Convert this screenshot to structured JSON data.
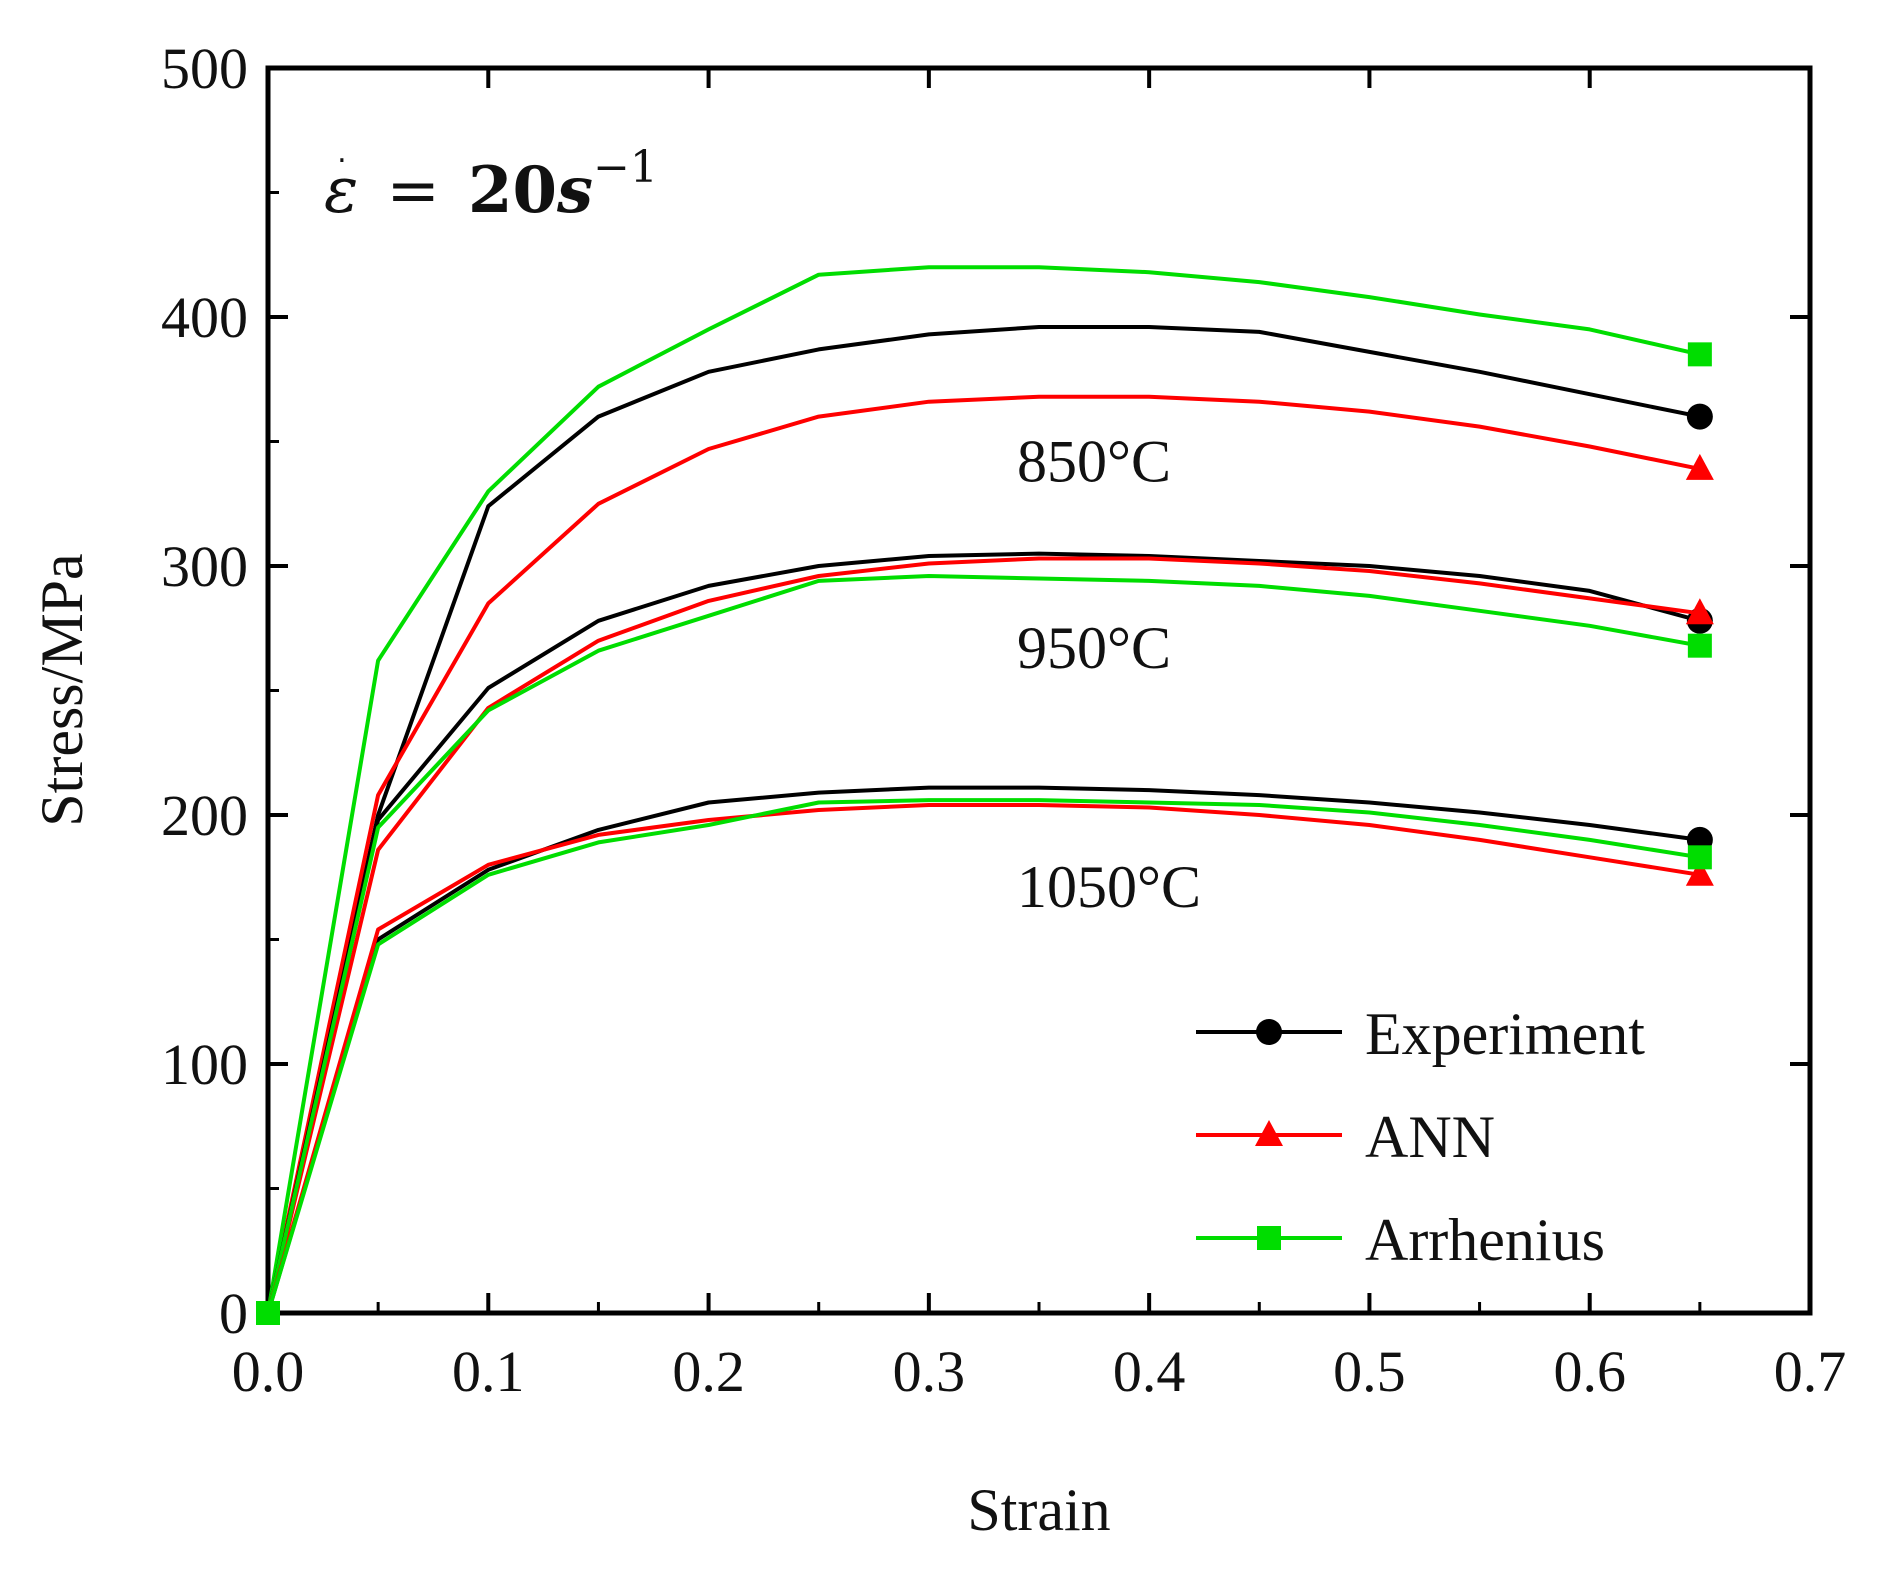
{
  "chart_data": {
    "type": "line",
    "title": "",
    "annotation": {
      "symbol": "ε",
      "equals": "=",
      "value": "20",
      "unit": "s",
      "exponent": "−1"
    },
    "xlabel": "Strain",
    "ylabel": "Stress/MPa",
    "xlim": [
      0.0,
      0.7
    ],
    "ylim": [
      0,
      500
    ],
    "xticks": [
      "0.0",
      "0.1",
      "0.2",
      "0.3",
      "0.4",
      "0.5",
      "0.6",
      "0.7"
    ],
    "yticks": [
      "0",
      "100",
      "200",
      "300",
      "400",
      "500"
    ],
    "grid": false,
    "legend_position": "bottom-right",
    "legend": [
      {
        "name": "Experiment",
        "color": "#000000",
        "marker": "circle"
      },
      {
        "name": "ANN",
        "color": "#ff0000",
        "marker": "triangle"
      },
      {
        "name": "Arrhenius",
        "color": "#00dd00",
        "marker": "square"
      }
    ],
    "curve_labels": [
      {
        "text": "850°C",
        "x": 0.34,
        "y": 334
      },
      {
        "text": "950°C",
        "x": 0.34,
        "y": 259
      },
      {
        "text": "1050°C",
        "x": 0.34,
        "y": 163
      }
    ],
    "x": [
      0.0,
      0.05,
      0.1,
      0.15,
      0.2,
      0.25,
      0.3,
      0.35,
      0.4,
      0.45,
      0.5,
      0.55,
      0.6,
      0.65
    ],
    "series": [
      {
        "name": "Experiment",
        "temperature": "850°C",
        "color": "#000000",
        "marker": "circle",
        "values": [
          0,
          200,
          324,
          360,
          378,
          387,
          393,
          396,
          396,
          394,
          386,
          378,
          369,
          360
        ]
      },
      {
        "name": "ANN",
        "temperature": "850°C",
        "color": "#ff0000",
        "marker": "triangle",
        "values": [
          0,
          208,
          285,
          325,
          347,
          360,
          366,
          368,
          368,
          366,
          362,
          356,
          348,
          339
        ]
      },
      {
        "name": "Arrhenius",
        "temperature": "850°C",
        "color": "#00dd00",
        "marker": "square",
        "values": [
          0,
          262,
          330,
          372,
          395,
          417,
          420,
          420,
          418,
          414,
          408,
          401,
          395,
          385
        ]
      },
      {
        "name": "Experiment",
        "temperature": "950°C",
        "color": "#000000",
        "marker": "circle",
        "values": [
          0,
          198,
          251,
          278,
          292,
          300,
          304,
          305,
          304,
          302,
          300,
          296,
          290,
          278
        ]
      },
      {
        "name": "ANN",
        "temperature": "950°C",
        "color": "#ff0000",
        "marker": "triangle",
        "values": [
          0,
          186,
          243,
          270,
          286,
          296,
          301,
          303,
          303,
          301,
          298,
          293,
          287,
          281
        ]
      },
      {
        "name": "Arrhenius",
        "temperature": "950°C",
        "color": "#00dd00",
        "marker": "square",
        "values": [
          0,
          195,
          242,
          266,
          280,
          294,
          296,
          295,
          294,
          292,
          288,
          282,
          276,
          268
        ]
      },
      {
        "name": "Experiment",
        "temperature": "1050°C",
        "color": "#000000",
        "marker": "circle",
        "values": [
          0,
          150,
          178,
          194,
          205,
          209,
          211,
          211,
          210,
          208,
          205,
          201,
          196,
          190
        ]
      },
      {
        "name": "ANN",
        "temperature": "1050°C",
        "color": "#ff0000",
        "marker": "triangle",
        "values": [
          0,
          154,
          180,
          192,
          198,
          202,
          204,
          204,
          203,
          200,
          196,
          190,
          183,
          176
        ]
      },
      {
        "name": "Arrhenius",
        "temperature": "1050°C",
        "color": "#00dd00",
        "marker": "square",
        "values": [
          0,
          148,
          176,
          189,
          196,
          205,
          206,
          206,
          205,
          204,
          201,
          196,
          190,
          183
        ]
      }
    ]
  }
}
